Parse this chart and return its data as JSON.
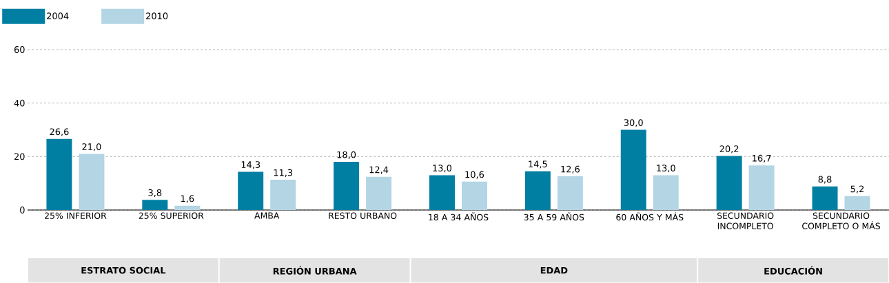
{
  "chart_data": {
    "type": "bar",
    "categories": [
      "25% INFERIOR",
      "25% SUPERIOR",
      "AMBA",
      "RESTO URBANO",
      "18 A 34 AÑOS",
      "35 A 59 AÑOS",
      "60 AÑOS Y MÁS",
      "SECUNDARIO INCOMPLETO",
      "SECUNDARIO COMPLETO O MÁS"
    ],
    "series": [
      {
        "name": "2004",
        "color": "#007fa3",
        "values": [
          26.6,
          3.8,
          14.3,
          18.0,
          13.0,
          14.5,
          30.0,
          20.2,
          8.8
        ],
        "value_labels": [
          "26,6",
          "3,8",
          "14,3",
          "18,0",
          "13,0",
          "14,5",
          "30,0",
          "20,2",
          "8,8"
        ]
      },
      {
        "name": "2010",
        "color": "#b3d5e4",
        "values": [
          21.0,
          1.6,
          11.3,
          12.4,
          10.6,
          12.6,
          13.0,
          16.7,
          5.2
        ],
        "value_labels": [
          "21,0",
          "1,6",
          "11,3",
          "12,4",
          "10,6",
          "12,6",
          "13,0",
          "16,7",
          "5,2"
        ]
      }
    ],
    "ylim": [
      0,
      60
    ],
    "yticks": [
      0,
      20,
      40,
      60
    ],
    "grid": "y",
    "legend": "top left",
    "annotations": [
      "ESTRATO SOCIAL",
      "REGIÓN URBANA",
      "EDAD",
      "EDUCACIÓN"
    ]
  }
}
